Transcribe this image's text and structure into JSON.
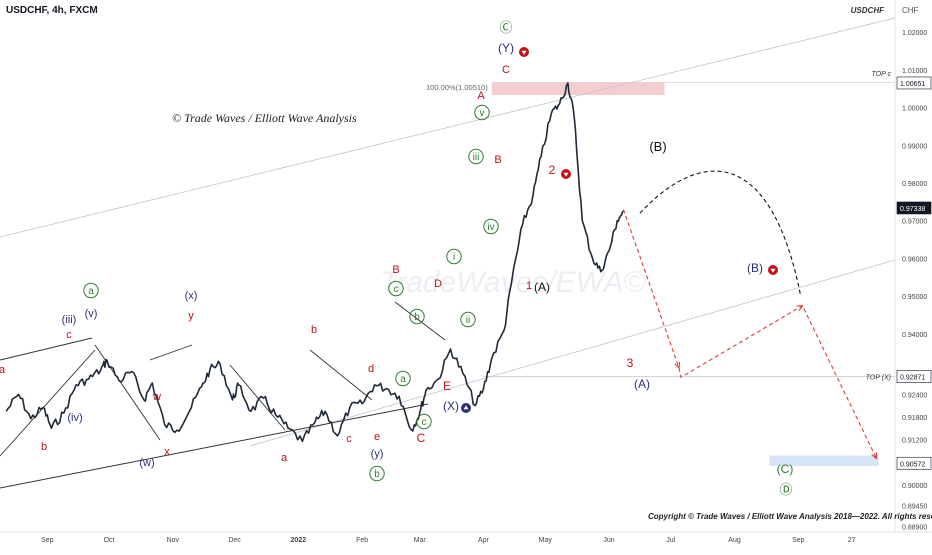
{
  "header": {
    "title": "USDCHF, 4h, FXCM",
    "symbol_tag": "USDCHF",
    "currency": "CHF"
  },
  "watermark_text": "© Trade Waves / Elliott Wave Analysis",
  "background_watermark": "TradeWaves/EWA©",
  "copyright_text": "Copyright © Trade Waves / Elliott Wave Analysis 2018—2022. All rights reserved",
  "colors": {
    "candle": "#1f2937",
    "red_label": "#c0111c",
    "green_label": "#2e7d32",
    "navy_label": "#2b2f7a",
    "pink_zone": "#f3c4c8",
    "blue_zone": "#cfe0f3",
    "red_dash": "#e53935"
  },
  "chart_data": {
    "type": "line",
    "title": "USDCHF, 4h, FXCM",
    "xlabel": "",
    "ylabel": "",
    "y_scale": "linear",
    "ylim": [
      0.8875,
      1.0285
    ],
    "grid": false,
    "x_tick_labels": [
      "Sep",
      "Oct",
      "Nov",
      "Dec",
      "2022",
      "Feb",
      "Mar",
      "Apr",
      "May",
      "Jun",
      "Jul",
      "Aug",
      "Sep",
      "27"
    ],
    "y_tick_labels": [
      "1.02000",
      "1.01000",
      "1.00000",
      "0.99000",
      "0.98000",
      "0.97000",
      "0.96000",
      "0.95000",
      "0.94000",
      "0.92400",
      "0.91800",
      "0.91200",
      "0.90000",
      "0.89450",
      "0.88900"
    ],
    "price_tags": [
      {
        "value": "1.00651",
        "note": "TOP c"
      },
      {
        "value": "0.97338",
        "note": ""
      },
      {
        "value": "0.92871",
        "note": "TOP (X)"
      },
      {
        "value": "0.90572",
        "note": ""
      }
    ],
    "zones": [
      {
        "label": "100.00%(1.00510)",
        "from": 1.0033,
        "to": 1.0066,
        "start": "2022-04-05",
        "end": "2022-06-28",
        "color": "pink"
      },
      {
        "from": 0.905,
        "to": 0.9078,
        "start": "2022-08-18",
        "end": "2022-10-10",
        "color": "blue"
      }
    ],
    "series": [
      {
        "name": "",
        "x": [
          "2021-08-12",
          "2021-08-18",
          "2021-08-24",
          "2021-08-30",
          "2021-09-03",
          "2021-09-09",
          "2021-09-15",
          "2021-09-21",
          "2021-09-27",
          "2021-09-30",
          "2021-10-06",
          "2021-10-12",
          "2021-10-18",
          "2021-10-22",
          "2021-10-28",
          "2021-11-03",
          "2021-11-09",
          "2021-11-15",
          "2021-11-19",
          "2021-11-24",
          "2021-11-30",
          "2021-12-03",
          "2021-12-09",
          "2021-12-15",
          "2021-12-21",
          "2021-12-27",
          "2022-01-03",
          "2022-01-09",
          "2022-01-14",
          "2022-01-20",
          "2022-01-26",
          "2022-02-01",
          "2022-02-07",
          "2022-02-13",
          "2022-02-19",
          "2022-02-25",
          "2022-03-01",
          "2022-03-04",
          "2022-03-10",
          "2022-03-16",
          "2022-03-22",
          "2022-03-28",
          "2022-04-01",
          "2022-04-05",
          "2022-04-11",
          "2022-04-15",
          "2022-04-20",
          "2022-04-25",
          "2022-04-29",
          "2022-05-04",
          "2022-05-08",
          "2022-05-12",
          "2022-05-15",
          "2022-05-19",
          "2022-05-24",
          "2022-05-28",
          "2022-06-01",
          "2022-06-05",
          "2022-06-08"
        ],
        "values": [
          0.9195,
          0.924,
          0.9175,
          0.9205,
          0.915,
          0.919,
          0.9265,
          0.928,
          0.9305,
          0.933,
          0.9275,
          0.93,
          0.9225,
          0.927,
          0.916,
          0.9145,
          0.9195,
          0.926,
          0.9305,
          0.932,
          0.9225,
          0.9265,
          0.9195,
          0.923,
          0.9185,
          0.915,
          0.9115,
          0.9165,
          0.9195,
          0.913,
          0.9205,
          0.9215,
          0.9265,
          0.9255,
          0.9235,
          0.9145,
          0.919,
          0.925,
          0.928,
          0.936,
          0.9295,
          0.921,
          0.9255,
          0.9335,
          0.941,
          0.955,
          0.969,
          0.9765,
          0.987,
          0.9985,
          1.001,
          1.0065,
          0.998,
          0.97,
          0.96,
          0.9565,
          0.962,
          0.97,
          0.9725
        ]
      }
    ],
    "projection": {
      "path_x": [
        "2022-06-08",
        "2022-07-05",
        "2022-07-06",
        "2022-09-03",
        "2022-10-09"
      ],
      "path_y": [
        0.973,
        0.931,
        0.9285,
        0.9475,
        0.907
      ],
      "curve_label": "(B)"
    },
    "wave_labels": [
      {
        "text": "Ⓒ",
        "color": "green"
      },
      {
        "text": "(Y)",
        "color": "navy"
      },
      {
        "text": "C",
        "color": "red"
      },
      {
        "text": "A",
        "color": "red"
      },
      {
        "text": "B",
        "color": "red"
      },
      {
        "text": "v",
        "color": "green"
      },
      {
        "text": "iii",
        "color": "green"
      },
      {
        "text": "iv",
        "color": "green"
      },
      {
        "text": "i",
        "color": "green"
      },
      {
        "text": "ii",
        "color": "green"
      },
      {
        "text": "2",
        "color": "red"
      },
      {
        "text": "1",
        "color": "red"
      },
      {
        "text": "(A)",
        "color": "black"
      },
      {
        "text": "(B)",
        "color": "black"
      },
      {
        "text": "(B)",
        "color": "navy"
      },
      {
        "text": "3",
        "color": "red"
      },
      {
        "text": "(A)",
        "color": "navy"
      },
      {
        "text": "(C)",
        "color": "green"
      },
      {
        "text": "Ⓓ",
        "color": "green"
      },
      {
        "text": "B",
        "color": "red"
      },
      {
        "text": "c",
        "color": "green"
      },
      {
        "text": "D",
        "color": "red"
      },
      {
        "text": "b",
        "color": "green"
      },
      {
        "text": "a",
        "color": "green"
      },
      {
        "text": "E",
        "color": "red"
      },
      {
        "text": "(X)",
        "color": "navy"
      },
      {
        "text": "c",
        "color": "green"
      },
      {
        "text": "C",
        "color": "red"
      },
      {
        "text": "d",
        "color": "red"
      },
      {
        "text": "e",
        "color": "red"
      },
      {
        "text": "(y)",
        "color": "navy"
      },
      {
        "text": "b",
        "color": "green"
      },
      {
        "text": "b",
        "color": "red"
      },
      {
        "text": "c",
        "color": "red"
      },
      {
        "text": "a",
        "color": "red"
      },
      {
        "text": "(x)",
        "color": "navy"
      },
      {
        "text": "y",
        "color": "red"
      },
      {
        "text": "w",
        "color": "red"
      },
      {
        "text": "(w)",
        "color": "navy"
      },
      {
        "text": "x",
        "color": "red"
      },
      {
        "text": "a",
        "color": "green"
      },
      {
        "text": "(v)",
        "color": "navy"
      },
      {
        "text": "(iii)",
        "color": "navy"
      },
      {
        "text": "c",
        "color": "red"
      },
      {
        "text": "(iv)",
        "color": "navy"
      },
      {
        "text": "b",
        "color": "red"
      },
      {
        "text": "a",
        "color": "red"
      }
    ]
  }
}
